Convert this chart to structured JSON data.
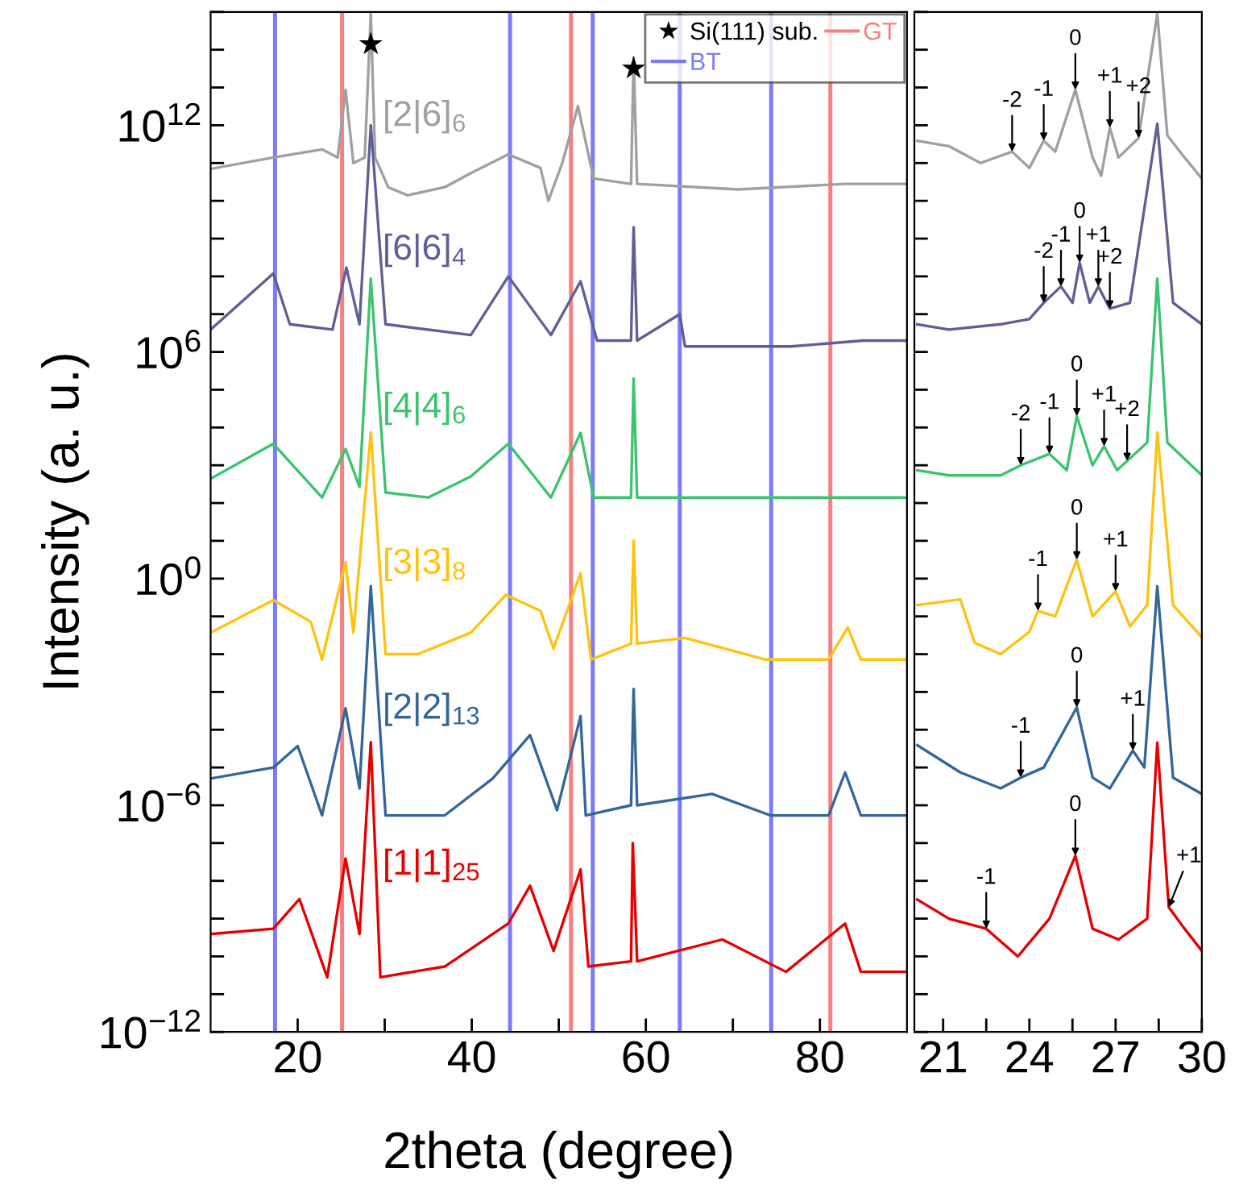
{
  "chart_data": [
    {
      "type": "line",
      "xlabel": "2theta (degree)",
      "ylabel": "Intensity (a. u.)",
      "log": true,
      "legend": "top right",
      "xlim": [
        10,
        90
      ],
      "xticks": [
        20,
        {
          "value": 30,
          "label": null
        },
        40,
        {
          "value": 50,
          "label": null
        },
        60,
        {
          "value": 70,
          "label": null
        },
        80
      ],
      "ylim": [
        1e-12,
        1000000000000000.0
      ],
      "yticks": [
        {
          "value": 1e-12,
          "label": "10$^{−12}$"
        },
        {
          "value": 1e-11,
          "label": null
        },
        {
          "value": 1e-10,
          "label": null
        },
        {
          "value": 1e-09,
          "label": null
        },
        {
          "value": 1e-08,
          "label": null
        },
        {
          "value": 1e-07,
          "label": null
        },
        {
          "value": 1e-06,
          "label": "10$^{−6}$"
        },
        {
          "value": 1e-05,
          "label": null
        },
        {
          "value": 0.0001,
          "label": null
        },
        {
          "value": 0.001,
          "label": null
        },
        {
          "value": 0.01,
          "label": null
        },
        {
          "value": 0.1,
          "label": null
        },
        {
          "value": 1,
          "label": "10$^{0}$"
        },
        {
          "value": 10.0,
          "label": null
        },
        {
          "value": 100.0,
          "label": null
        },
        {
          "value": 1000.0,
          "label": null
        },
        {
          "value": 10000.0,
          "label": null
        },
        {
          "value": 100000.0,
          "label": null
        },
        {
          "value": 1000000.0,
          "label": "10$^{6}$"
        },
        {
          "value": 10000000.0,
          "label": null
        },
        {
          "value": 100000000.0,
          "label": null
        },
        {
          "value": 1000000000.0,
          "label": null
        },
        {
          "value": 10000000000.0,
          "label": null
        },
        {
          "value": 100000000000.0,
          "label": null
        },
        {
          "value": 1000000000000.0,
          "label": "10$^{12}$"
        },
        {
          "value": 10000000000000.0,
          "label": null
        },
        {
          "value": 100000000000000.0,
          "label": null
        },
        {
          "value": 1000000000000000.0,
          "label": null
        }
      ],
      "series": [
        {
          "name": "[2|6]$_{6}$",
          "color": "#a0a0a0",
          "x": [
            10,
            17.2,
            22.8,
            24.6,
            25.5,
            26.4,
            27.7,
            28.4,
            28.9,
            30.4,
            32.6,
            36.9,
            39.9,
            44.2,
            47.9,
            48.8,
            50.4,
            52.2,
            54.0,
            58.3,
            58.6,
            59.0,
            70.6,
            82.9,
            90
          ],
          "values": [
            70000000000.0,
            140000000000.0,
            230000000000.0,
            140000000000.0,
            8700000000000.0,
            100000000000.0,
            140000000000.0,
            900000000000000.0,
            140000000000.0,
            23000000000.0,
            14000000000.0,
            23000000000.0,
            54000000000.0,
            170000000000.0,
            74000000000.0,
            10000000000.0,
            100000000000.0,
            3200000000000.0,
            39000000000.0,
            28000000000.0,
            63000000000000.0,
            28000000000.0,
            20000000000.0,
            28000000000.0,
            28000000000.0
          ]
        },
        {
          "name": "[6|6]$_{4}$",
          "color": "#5f5f96",
          "x": [
            10,
            17.2,
            19.1,
            24.0,
            25.6,
            27.1,
            28.4,
            30.1,
            39.9,
            44.2,
            49.1,
            52.5,
            54.4,
            58.3,
            58.6,
            59.0,
            63.9,
            64.5,
            76.7,
            85,
            90
          ],
          "values": [
            3900000.0,
            120000000.0,
            5400000.0,
            3900000.0,
            170000000.0,
            5400000.0,
            1000000000000.0,
            5400000.0,
            2800000.0,
            100000000.0,
            2800000.0,
            74000000.0,
            2000000.0,
            2000000.0,
            2000000000.0,
            2000000.0,
            10000000.0,
            1400000.0,
            1400000.0,
            2000000.0,
            2000000.0
          ]
        },
        {
          "name": "[4|4]$_{6}$",
          "color": "#3cc36e",
          "x": [
            10,
            17.2,
            22.8,
            25.5,
            27.1,
            28.4,
            30.1,
            35.0,
            39.9,
            44.2,
            49.1,
            52.5,
            54.0,
            58.3,
            58.6,
            59.0,
            70.6,
            85,
            90
          ],
          "values": [
            440,
            3700,
            140,
            2700,
            270,
            87000000.0,
            190,
            140,
            510,
            3700,
            140,
            7200,
            140,
            140,
            200000.0,
            140,
            140,
            140,
            140
          ]
        },
        {
          "name": "[3|3]$_{8}$",
          "color": "#ffc20e",
          "x": [
            10,
            17.2,
            21.5,
            22.8,
            25.5,
            26.4,
            28.4,
            30.1,
            33.8,
            39.9,
            43.9,
            47.9,
            49.4,
            52.5,
            53.7,
            58.3,
            58.6,
            59.0,
            64.5,
            73.7,
            81.0,
            83.2,
            84.7,
            90
          ],
          "values": [
            0.037,
            0.27,
            0.072,
            0.0072,
            2.7,
            0.037,
            7400,
            0.01,
            0.01,
            0.037,
            0.37,
            0.14,
            0.014,
            1.4,
            0.0072,
            0.019,
            10,
            0.019,
            0.027,
            0.0072,
            0.0072,
            0.051,
            0.0072,
            0.0072
          ]
        },
        {
          "name": "[2|2]$_{13}$",
          "color": "#336699",
          "x": [
            10,
            17.2,
            20.0,
            22.8,
            25.5,
            27.1,
            28.4,
            30.1,
            36.9,
            42.4,
            46.7,
            49.8,
            52.5,
            53.1,
            58.3,
            58.6,
            59.0,
            67.6,
            74.3,
            81.0,
            82.9,
            84.7,
            90
          ],
          "values": [
            5.1e-06,
            1e-05,
            3.7e-05,
            5.4e-07,
            0.00037,
            2.8e-06,
            0.63,
            5.4e-07,
            5.4e-07,
            5.1e-06,
            7.2e-05,
            7.4e-07,
            0.00023,
            5.4e-07,
            1e-06,
            0.0012,
            1e-06,
            2e-06,
            5.4e-07,
            5.4e-07,
            7.4e-06,
            5.4e-07,
            5.4e-07
          ]
        },
        {
          "name": "[1|1]$_{25}$",
          "color": "#e60000",
          "x": [
            10,
            17.2,
            20.2,
            23.4,
            25.5,
            27.1,
            28.4,
            29.5,
            36.9,
            44.2,
            46.7,
            49.4,
            52.5,
            53.4,
            58.3,
            58.5,
            59.0,
            68.8,
            76.1,
            82.9,
            84.7,
            90
          ],
          "values": [
            3.9e-10,
            5.4e-10,
            3.3e-09,
            2.8e-11,
            3.9e-08,
            3.9e-10,
            4.7e-05,
            2.8e-11,
            5.4e-11,
            7.4e-10,
            7.4e-09,
            1.4e-10,
            2e-08,
            5.4e-11,
            7.4e-11,
            1e-07,
            7.4e-11,
            2.8e-10,
            3.9e-11,
            7.4e-10,
            3.9e-11,
            3.9e-11
          ]
        },
        {
          "name": "Si(111) sub.",
          "type": "scatter",
          "marker": "star",
          "color": "#000000",
          "x": [
            28.4,
            58.6
          ],
          "values": [
            140000000000000.0,
            32000000000000.0
          ]
        }
      ],
      "ref_lines": [
        {
          "axis": "x",
          "value": 17.4,
          "label": "BT",
          "color": "#7b7bf5"
        },
        {
          "axis": "x",
          "value": 44.4,
          "color": "#7b7bf5"
        },
        {
          "axis": "x",
          "value": 53.9,
          "color": "#7b7bf5"
        },
        {
          "axis": "x",
          "value": 63.9,
          "color": "#7b7bf5"
        },
        {
          "axis": "x",
          "value": 74.4,
          "color": "#7b7bf5"
        },
        {
          "axis": "x",
          "value": 25.1,
          "label": "GT",
          "color": "#f58080"
        },
        {
          "axis": "x",
          "value": 51.4,
          "color": "#f58080"
        },
        {
          "axis": "x",
          "value": 81.2,
          "color": "#f58080"
        }
      ]
    },
    {
      "type": "line",
      "log": true,
      "tick_labels": "x",
      "xlim": [
        20,
        30
      ],
      "xticks": [
        21,
        {
          "value": 22.5,
          "label": null
        },
        24,
        {
          "value": 25.5,
          "label": null
        },
        27,
        {
          "value": 28.5,
          "label": null
        },
        30
      ],
      "ylim": [
        1e-12,
        1000000000000000.0
      ],
      "yticks": [
        1e-12,
        1e-11,
        1e-10,
        1e-09,
        1e-08,
        1e-07,
        1e-06,
        1e-05,
        0.0001,
        0.001,
        0.01,
        0.1,
        1,
        10.0,
        100.0,
        1000.0,
        10000.0,
        100000.0,
        1000000.0,
        10000000.0,
        100000000.0,
        1000000000.0,
        10000000000.0,
        100000000000.0,
        1000000000000.0,
        10000000000000.0,
        100000000000000.0,
        1000000000000000.0
      ],
      "series": [
        {
          "color": "#a0a0a0",
          "x": [
            20.1,
            21.2,
            22.3,
            23.4,
            24.0,
            24.5,
            24.9,
            25.6,
            26.2,
            26.5,
            26.8,
            27.1,
            27.8,
            28.45,
            28.8,
            29.4,
            30.0
          ],
          "values": [
            390000000000.0,
            280000000000.0,
            100000000000.0,
            200000000000.0,
            74000000000.0,
            390000000000.0,
            200000000000.0,
            8700000000000.0,
            140000000000.0,
            46000000000.0,
            870000000000.0,
            140000000000.0,
            460000000000.0,
            900000000000000.0,
            540000000000.0,
            140000000000.0,
            39000000000.0
          ]
        },
        {
          "color": "#5f5f96",
          "x": [
            20.1,
            21.2,
            23.0,
            24.0,
            24.5,
            25.1,
            25.5,
            25.75,
            26.1,
            26.4,
            26.8,
            27.5,
            28.45,
            29.0,
            30.0
          ],
          "values": [
            5400000.0,
            3900000.0,
            5400000.0,
            7400000.0,
            20000000.0,
            54000000.0,
            20000000.0,
            230000000.0,
            20000000.0,
            54000000.0,
            14000000.0,
            20000000.0,
            1100000000000.0,
            20000000.0,
            5400000.0
          ]
        },
        {
          "color": "#3cc36e",
          "x": [
            20.1,
            21.2,
            23.0,
            23.7,
            24.7,
            25.3,
            25.65,
            26.2,
            26.6,
            27.05,
            27.4,
            28.1,
            28.45,
            28.8,
            30.0
          ],
          "values": [
            740,
            540,
            540,
            1000,
            2000,
            740,
            20000.0,
            1000,
            3200,
            740,
            1300,
            4000,
            87000000.0,
            4000,
            540
          ]
        },
        {
          "color": "#ffc20e",
          "x": [
            20.1,
            21.6,
            22.1,
            23.0,
            24.0,
            24.3,
            24.9,
            25.65,
            26.2,
            27.0,
            27.5,
            28.1,
            28.45,
            29.0,
            30.0
          ],
          "values": [
            0.2,
            0.28,
            0.02,
            0.01,
            0.039,
            0.14,
            0.1,
            3.2,
            0.1,
            0.46,
            0.054,
            0.2,
            7400,
            0.2,
            0.028
          ]
        },
        {
          "color": "#336699",
          "x": [
            20.1,
            21.6,
            23.0,
            23.7,
            24.5,
            25.65,
            26.2,
            26.8,
            27.6,
            28.0,
            28.45,
            29.0,
            30.0
          ],
          "values": [
            3.9e-05,
            7.4e-06,
            2.8e-06,
            5.4e-06,
            1e-05,
            0.00039,
            5.4e-06,
            2.8e-06,
            2.8e-05,
            1e-05,
            0.63,
            5.4e-06,
            2e-06
          ]
        },
        {
          "color": "#e60000",
          "x": [
            20.1,
            21.2,
            22.5,
            23.6,
            24.7,
            25.6,
            26.2,
            27.1,
            28.1,
            28.45,
            28.85,
            29.4,
            30.0
          ],
          "values": [
            3.2e-09,
            1e-09,
            5.4e-10,
            1e-10,
            1e-09,
            4.6e-08,
            5.4e-10,
            2.8e-10,
            1e-09,
            4.6e-05,
            2e-09,
            5.4e-10,
            1.4e-10
          ]
        }
      ],
      "annotations": [
        {
          "text": "-2",
          "x": 23.4,
          "y": 200000000000.0
        },
        {
          "text": "-1",
          "x": 24.5,
          "y": 390000000000.0
        },
        {
          "text": "0",
          "x": 25.6,
          "y": 8700000000000.0
        },
        {
          "text": "+1",
          "x": 26.8,
          "y": 870000000000.0
        },
        {
          "text": "+2",
          "x": 27.8,
          "y": 460000000000.0
        },
        {
          "text": "-2",
          "x": 24.5,
          "y": 20000000.0
        },
        {
          "text": "-1",
          "x": 25.1,
          "y": 54000000.0
        },
        {
          "text": "0",
          "x": 25.75,
          "y": 230000000.0
        },
        {
          "text": "+1",
          "x": 26.4,
          "y": 54000000.0
        },
        {
          "text": "+2",
          "x": 26.8,
          "y": 14000000.0
        },
        {
          "text": "-2",
          "x": 23.7,
          "y": 1000
        },
        {
          "text": "-1",
          "x": 24.7,
          "y": 2000
        },
        {
          "text": "0",
          "x": 25.65,
          "y": 20000.0
        },
        {
          "text": "+1",
          "x": 26.6,
          "y": 3200
        },
        {
          "text": "+2",
          "x": 27.4,
          "y": 1300
        },
        {
          "text": "-1",
          "x": 24.3,
          "y": 0.14
        },
        {
          "text": "0",
          "x": 25.65,
          "y": 3.2
        },
        {
          "text": "+1",
          "x": 27.0,
          "y": 0.46
        },
        {
          "text": "-1",
          "x": 23.7,
          "y": 5.4e-06
        },
        {
          "text": "0",
          "x": 25.65,
          "y": 0.00039
        },
        {
          "text": "+1",
          "x": 27.6,
          "y": 2.8e-05
        },
        {
          "text": "-1",
          "x": 22.5,
          "y": 5.4e-10
        },
        {
          "text": "0",
          "x": 25.6,
          "y": 4.6e-08
        },
        {
          "text": "+1",
          "x": 28.85,
          "y": 2e-09
        }
      ]
    }
  ]
}
